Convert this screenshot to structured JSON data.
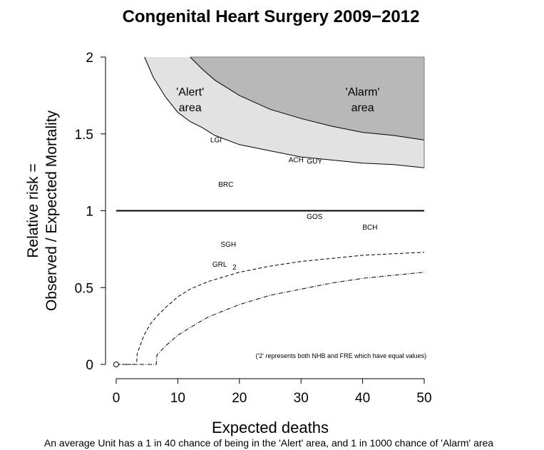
{
  "chart_data": {
    "type": "scatter",
    "title": "Congenital Heart Surgery 2009−2012",
    "xlabel": "Expected deaths",
    "ylabel": [
      "Relative risk =",
      "Observed / Expected Mortality"
    ],
    "xlim": [
      0,
      50
    ],
    "ylim": [
      0,
      2
    ],
    "x_ticks": [
      0,
      10,
      20,
      30,
      40,
      50
    ],
    "y_ticks": [
      0,
      0.5,
      1,
      1.5,
      2
    ],
    "x_tick_labels": [
      "0",
      "10",
      "20",
      "30",
      "40",
      "50"
    ],
    "y_tick_labels": [
      "0",
      "0.5",
      "1",
      "1.5",
      "2"
    ],
    "reference_line": 1,
    "grid": false,
    "regions": [
      {
        "name": "Alert",
        "label": [
          "'Alert'",
          "area"
        ],
        "color": "#e2e2e2",
        "label_at": [
          12,
          1.75
        ]
      },
      {
        "name": "Alarm",
        "label": [
          "'Alarm'",
          "area"
        ],
        "color": "#b8b8b8",
        "label_at": [
          40,
          1.75
        ]
      }
    ],
    "alert_curve": {
      "x": [
        4.6,
        6,
        8,
        10,
        12,
        14,
        16,
        20,
        25,
        30,
        35,
        40,
        45,
        50
      ],
      "y": [
        2.0,
        1.87,
        1.74,
        1.64,
        1.58,
        1.54,
        1.49,
        1.43,
        1.39,
        1.35,
        1.33,
        1.31,
        1.3,
        1.28
      ]
    },
    "alarm_curve": {
      "x": [
        12,
        14,
        16,
        18,
        20,
        25,
        30,
        35,
        40,
        45,
        50
      ],
      "y": [
        2.0,
        1.92,
        1.85,
        1.8,
        1.75,
        1.66,
        1.6,
        1.55,
        1.51,
        1.49,
        1.46
      ]
    },
    "lower_dashed": {
      "x": [
        0,
        3.3,
        3.4,
        4.5,
        5.5,
        6.5,
        8,
        10,
        12,
        15,
        20,
        25,
        30,
        35,
        40,
        45,
        50
      ],
      "y": [
        0,
        0,
        0.07,
        0.19,
        0.26,
        0.31,
        0.37,
        0.44,
        0.49,
        0.54,
        0.6,
        0.64,
        0.67,
        0.69,
        0.71,
        0.72,
        0.73
      ]
    },
    "lower_dotdash": {
      "x": [
        0,
        6.5,
        6.6,
        8,
        10,
        12,
        15,
        20,
        25,
        30,
        35,
        40,
        45,
        50
      ],
      "y": [
        0,
        0,
        0.06,
        0.12,
        0.19,
        0.24,
        0.31,
        0.39,
        0.45,
        0.49,
        0.53,
        0.56,
        0.58,
        0.6
      ]
    },
    "open_point": {
      "x": 0,
      "y": 0
    },
    "points": [
      {
        "label": "LGI",
        "x": 16.2,
        "y": 1.46
      },
      {
        "label": "ACH",
        "x": 29.2,
        "y": 1.33
      },
      {
        "label": "GUY",
        "x": 32.2,
        "y": 1.32
      },
      {
        "label": "BRC",
        "x": 17.8,
        "y": 1.17
      },
      {
        "label": "GOS",
        "x": 32.2,
        "y": 0.96
      },
      {
        "label": "BCH",
        "x": 41.2,
        "y": 0.89
      },
      {
        "label": "SGH",
        "x": 18.2,
        "y": 0.78
      },
      {
        "label": "GRL",
        "x": 16.8,
        "y": 0.65
      },
      {
        "label": "2",
        "x": 19.2,
        "y": 0.63
      }
    ],
    "annotation": {
      "text": "('2' represents both NHB and FRE which have equal values)",
      "x": 36.5,
      "y": 0.055
    }
  },
  "footer": "An average Unit has a 1 in 40 chance of being in the 'Alert' area, and 1 in 1000 chance of 'Alarm' area"
}
